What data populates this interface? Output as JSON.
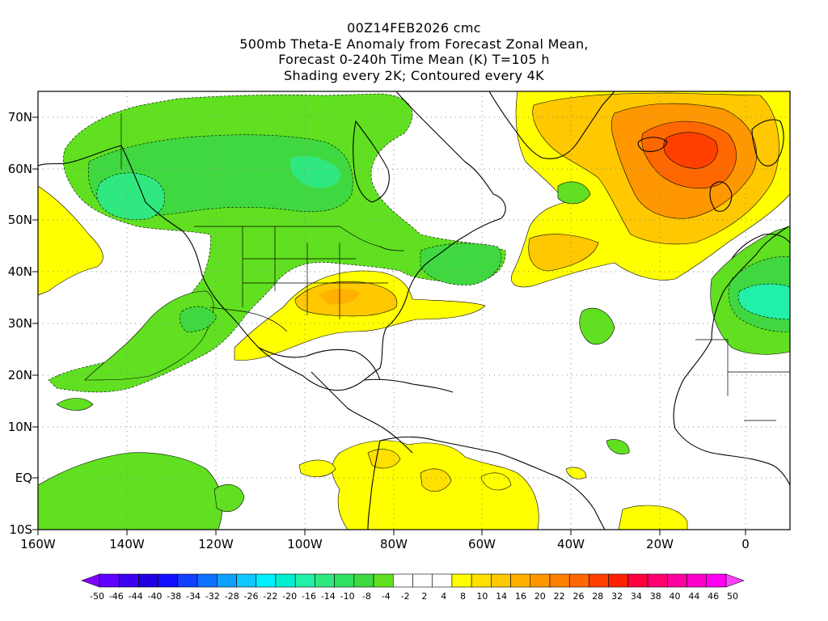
{
  "title": {
    "line1": "00Z14FEB2026 cmc",
    "line2": "500mb Theta-E Anomaly from Forecast Zonal Mean,",
    "line3": "Forecast 0-240h Time Mean (K) T=105 h",
    "line4": "Shading every 2K; Contoured every 4K"
  },
  "map": {
    "lat_labels": [
      "70N",
      "60N",
      "50N",
      "40N",
      "30N",
      "20N",
      "10N",
      "EQ",
      "10S"
    ],
    "lon_labels": [
      "160W",
      "140W",
      "120W",
      "100W",
      "80W",
      "60W",
      "40W",
      "20W",
      "0"
    ],
    "lat_range": [
      -10,
      75
    ],
    "lon_range": [
      -160,
      10
    ]
  },
  "colorbar": {
    "labels": [
      "-50",
      "-46",
      "-44",
      "-40",
      "-38",
      "-34",
      "-32",
      "-28",
      "-26",
      "-22",
      "-20",
      "-16",
      "-14",
      "-10",
      "-8",
      "-4",
      "-2",
      "2",
      "4",
      "8",
      "10",
      "14",
      "16",
      "20",
      "22",
      "26",
      "28",
      "32",
      "34",
      "38",
      "40",
      "44",
      "46",
      "50"
    ],
    "colors": [
      "#8000ff",
      "#6000ff",
      "#4000f0",
      "#2000e0",
      "#1010ff",
      "#1040ff",
      "#1070ff",
      "#10a0ff",
      "#10c8ff",
      "#00f0ff",
      "#00f0d0",
      "#20f0a8",
      "#30e880",
      "#30e060",
      "#40d840",
      "#60e020",
      "#ffffff",
      "#ffffff",
      "#ffffff",
      "#ffff00",
      "#ffe000",
      "#ffc800",
      "#ffb000",
      "#ff9800",
      "#ff8000",
      "#ff6800",
      "#ff4000",
      "#ff2000",
      "#ff0040",
      "#ff0070",
      "#ff00a0",
      "#ff00c8",
      "#ff00f0",
      "#ff40ff"
    ]
  },
  "colors": {
    "green_light": "#60e020",
    "green": "#40d840",
    "green_dark": "#30e060",
    "cyan_green": "#30e880",
    "cyan": "#20f0a8",
    "yellow": "#ffff00",
    "yellow2": "#ffe000",
    "orange1": "#ffc800",
    "orange2": "#ffb000",
    "orange3": "#ff9800",
    "orange4": "#ff8000",
    "red1": "#ff6800",
    "red2": "#ff4000"
  }
}
